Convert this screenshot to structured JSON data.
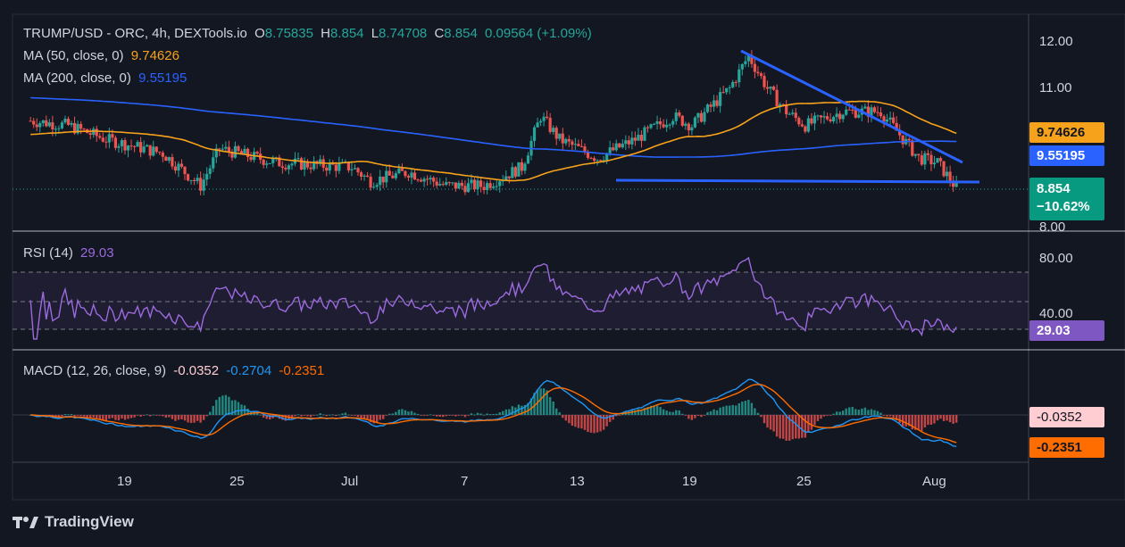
{
  "header": {
    "symbol": "TRUMP/USD - ORC, 4h, DEXTools.io",
    "o_label": "O",
    "o_value": "8.75835",
    "h_label": "H",
    "h_value": "8.854",
    "l_label": "L",
    "l_value": "8.74708",
    "c_label": "C",
    "c_value": "8.854",
    "change": "0.09564 (+1.09%)"
  },
  "ma50": {
    "label": "MA (50, close, 0)",
    "value": "9.74626",
    "color": "#f7a21b"
  },
  "ma200": {
    "label": "MA (200, close, 0)",
    "value": "9.55195",
    "color": "#2962ff"
  },
  "rsi": {
    "label": "RSI (14)",
    "value": "29.03",
    "color": "#9c6ade"
  },
  "macd": {
    "label": "MACD (12, 26, close, 9)",
    "hist": "-0.0352",
    "macd": "-0.2704",
    "signal": "-0.2351"
  },
  "price_axis": [
    "12.00",
    "11.00",
    "8.00"
  ],
  "rsi_axis": [
    "80.00",
    "40.00"
  ],
  "tags": {
    "ma50": "9.74626",
    "ma200": "9.55195",
    "last": "8.854",
    "last_change": "−10.62%",
    "rsi": "29.03",
    "macd_hist": "-0.0352",
    "macd_signal": "-0.2351"
  },
  "time_axis": [
    "19",
    "25",
    "Jul",
    "7",
    "13",
    "19",
    "25",
    "Aug"
  ],
  "branding": {
    "name": "TradingView"
  },
  "colors": {
    "up": "#26a69a",
    "down": "#ef5350",
    "trendline": "#2962ff",
    "bg": "#131722"
  },
  "chart_data": {
    "type": "candlestick",
    "symbol": "TRUMP/USD",
    "interval": "4h",
    "x_ticks": [
      "19",
      "25",
      "Jul",
      "7",
      "13",
      "19",
      "25",
      "Aug"
    ],
    "close_path_approx": [
      {
        "x": "Jun 14",
        "y": 10.3
      },
      {
        "x": "Jun 16",
        "y": 10.2
      },
      {
        "x": "Jun 18",
        "y": 9.9
      },
      {
        "x": "Jun 21",
        "y": 9.6
      },
      {
        "x": "Jun 23",
        "y": 8.9
      },
      {
        "x": "Jun 24",
        "y": 9.7
      },
      {
        "x": "Jun 27",
        "y": 9.4
      },
      {
        "x": "Jul 1",
        "y": 9.3
      },
      {
        "x": "Jul 2",
        "y": 9.0
      },
      {
        "x": "Jul 4",
        "y": 9.2
      },
      {
        "x": "Jul 6",
        "y": 8.9
      },
      {
        "x": "Jul 8",
        "y": 8.9
      },
      {
        "x": "Jul 10",
        "y": 9.3
      },
      {
        "x": "Jul 11",
        "y": 10.4
      },
      {
        "x": "Jul 12",
        "y": 9.9
      },
      {
        "x": "Jul 14",
        "y": 9.5
      },
      {
        "x": "Jul 16",
        "y": 9.9
      },
      {
        "x": "Jul 18",
        "y": 10.4
      },
      {
        "x": "Jul 19",
        "y": 10.2
      },
      {
        "x": "Jul 21",
        "y": 11.0
      },
      {
        "x": "Jul 22",
        "y": 11.7
      },
      {
        "x": "Jul 23",
        "y": 11.0
      },
      {
        "x": "Jul 24",
        "y": 10.5
      },
      {
        "x": "Jul 25",
        "y": 10.2
      },
      {
        "x": "Jul 27",
        "y": 10.5
      },
      {
        "x": "Jul 29",
        "y": 10.5
      },
      {
        "x": "Jul 30",
        "y": 10.0
      },
      {
        "x": "Jul 31",
        "y": 9.5
      },
      {
        "x": "Aug 1",
        "y": 9.4
      },
      {
        "x": "Aug 2",
        "y": 8.854
      }
    ],
    "ma50": {
      "last": 9.74626
    },
    "ma200": {
      "last": 9.55195
    },
    "rsi": {
      "period": 14,
      "last": 29.03,
      "bands": [
        70,
        50,
        30
      ]
    },
    "macd": {
      "fast": 12,
      "slow": 26,
      "signal": 9,
      "histogram": -0.0352,
      "macd": -0.2704,
      "signal_value": -0.2351
    },
    "y_ticks_price": [
      12.0,
      11.0,
      8.0
    ],
    "y_ticks_rsi": [
      80.0,
      40.0
    ]
  }
}
